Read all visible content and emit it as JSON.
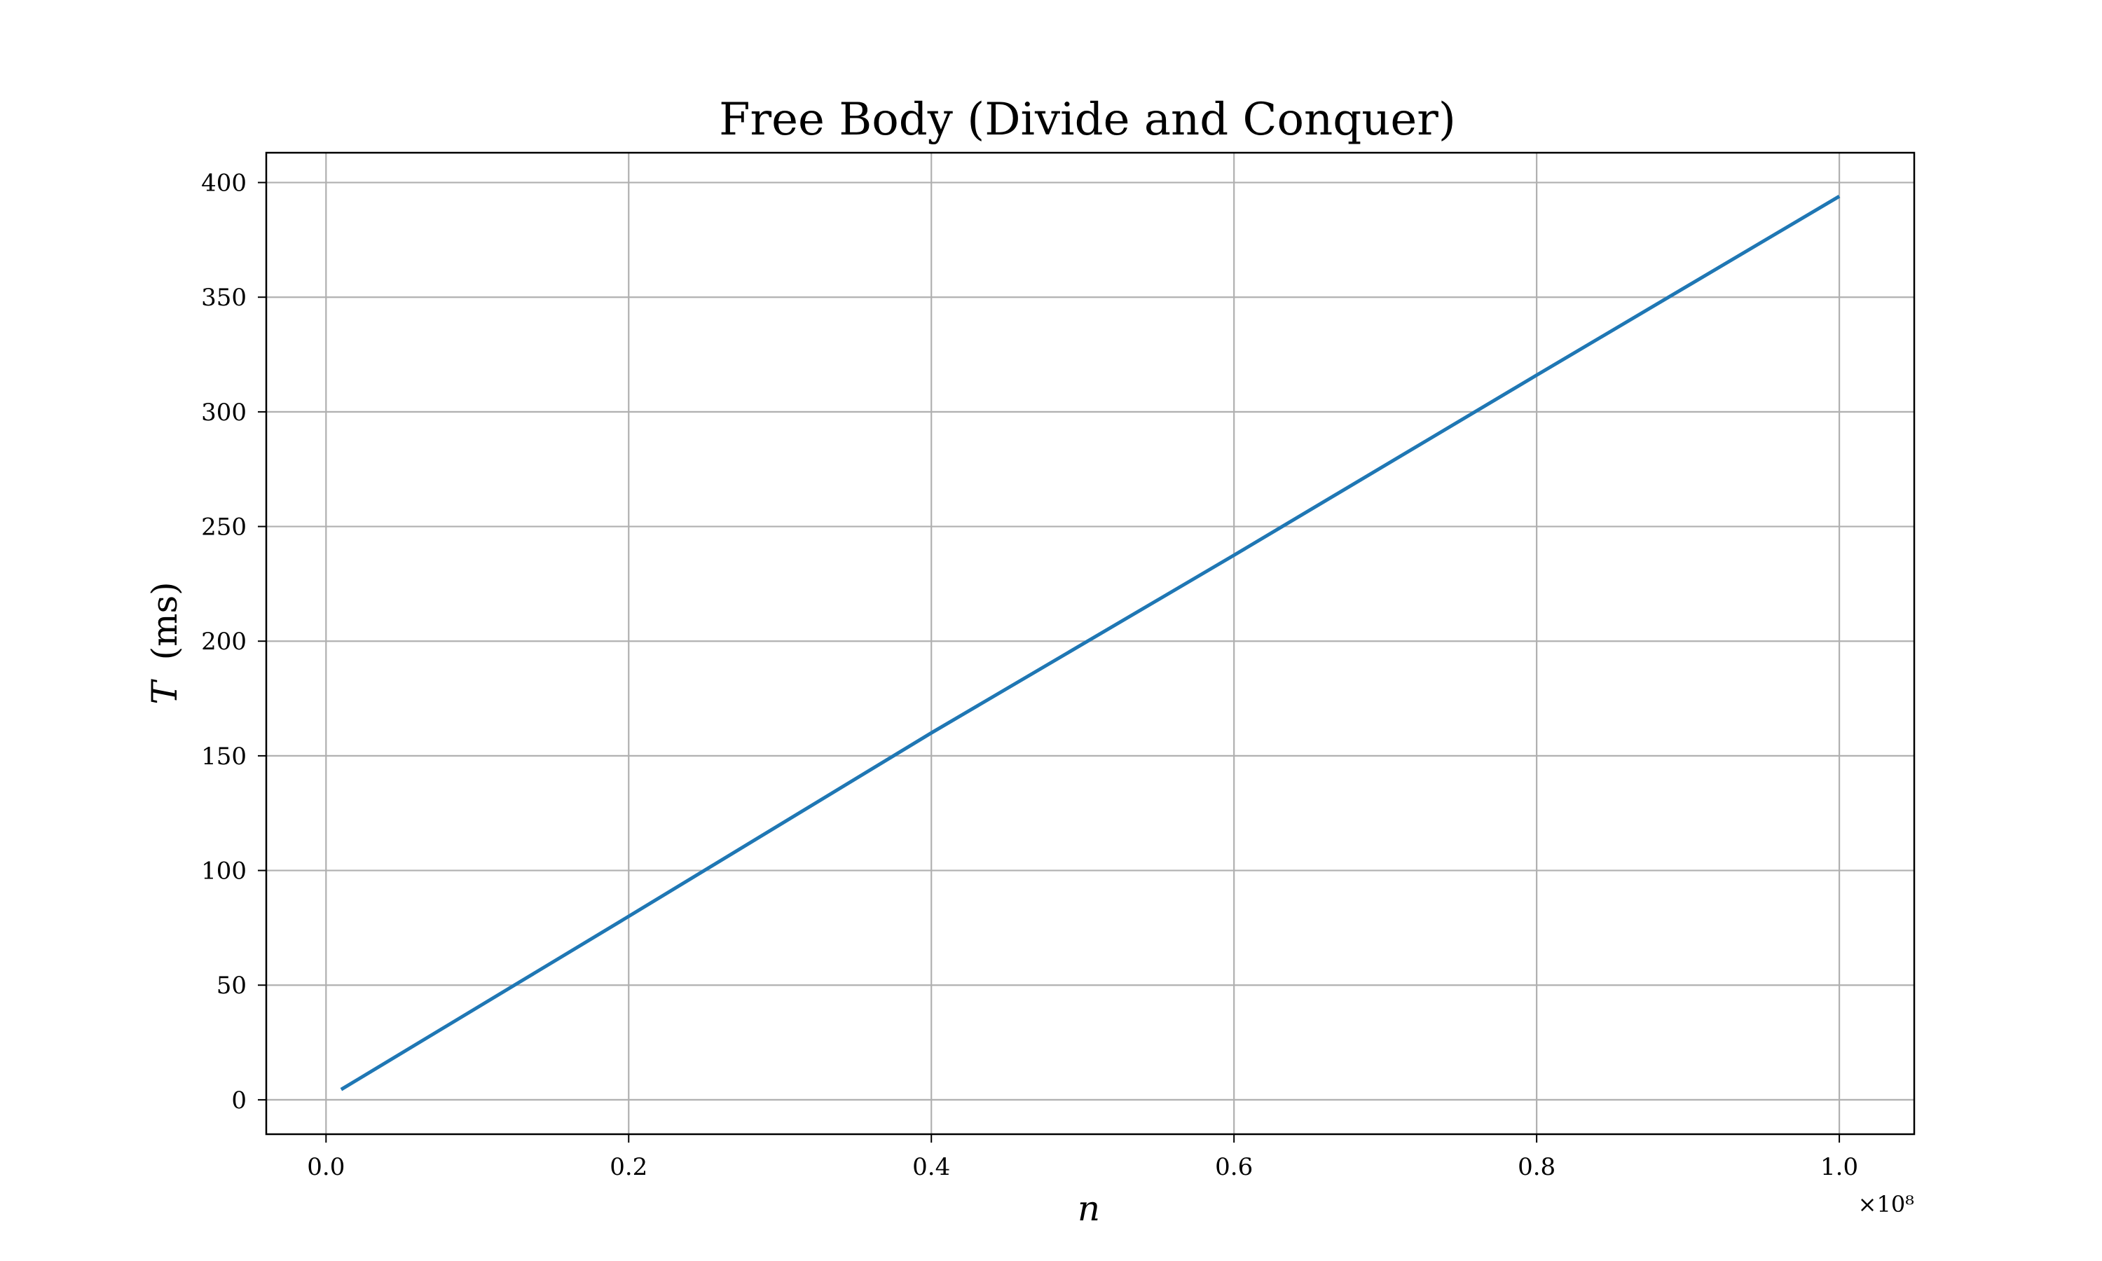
{
  "chart_data": {
    "type": "line",
    "title": "Free Body (Divide and Conquer)",
    "xlabel_var": "n",
    "ylabel_var": "T",
    "ylabel_unit": "(ms)",
    "x_offset_label": "×10⁸",
    "x_tick_labels": [
      "0.0",
      "0.2",
      "0.4",
      "0.6",
      "0.8",
      "1.0"
    ],
    "x_ticks": [
      0.0,
      0.2,
      0.4,
      0.6,
      0.8,
      1.0
    ],
    "y_tick_labels": [
      "0",
      "50",
      "100",
      "150",
      "200",
      "250",
      "300",
      "350",
      "400"
    ],
    "y_ticks": [
      0,
      50,
      100,
      150,
      200,
      250,
      300,
      350,
      400
    ],
    "xlim": [
      -0.0395,
      1.0495
    ],
    "ylim": [
      -15,
      413
    ],
    "grid": true,
    "line_color": "#1f77b4",
    "series": [
      {
        "x": [
          0.01,
          0.2,
          0.4,
          0.6,
          0.8,
          1.0
        ],
        "values": [
          4.5,
          80,
          160,
          237.5,
          316,
          394
        ]
      }
    ]
  }
}
